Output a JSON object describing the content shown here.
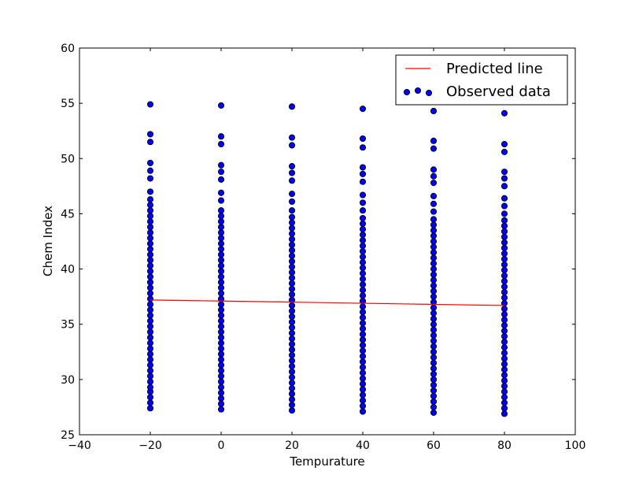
{
  "chart_data": {
    "type": "scatter",
    "title": "",
    "xlabel": "Tempurature",
    "ylabel": "Chem Index",
    "xlim": [
      -40,
      100
    ],
    "ylim": [
      25,
      60
    ],
    "xticks": [
      -40,
      -20,
      0,
      20,
      40,
      60,
      80,
      100
    ],
    "yticks": [
      25,
      30,
      35,
      40,
      45,
      50,
      55,
      60
    ],
    "grid": false,
    "legend_position": "top-right",
    "series": [
      {
        "name": "Predicted line",
        "kind": "line",
        "color": "#ff0000",
        "x": [
          -20,
          0,
          20,
          40,
          60,
          80
        ],
        "y": [
          37.2,
          37.1,
          37.0,
          36.9,
          36.8,
          36.7
        ]
      },
      {
        "name": "Observed data",
        "kind": "scatter",
        "color": "#0000ff",
        "edge_color": "#000000",
        "groups": [
          {
            "x": -20,
            "y": [
              27.4,
              27.9,
              28.4,
              28.9,
              29.3,
              29.8,
              30.3,
              30.8,
              31.3,
              31.8,
              32.3,
              32.8,
              33.3,
              33.8,
              34.3,
              34.8,
              35.3,
              35.8,
              36.3,
              36.8,
              37.3,
              37.8,
              38.3,
              38.8,
              39.3,
              39.8,
              40.3,
              40.8,
              41.3,
              41.8,
              42.3,
              42.8,
              43.3,
              43.8,
              44.3,
              44.8,
              45.3,
              45.8,
              46.3,
              47.0,
              48.2,
              48.9,
              49.6,
              51.5,
              52.2,
              54.9
            ]
          },
          {
            "x": 0,
            "y": [
              27.3,
              27.8,
              28.3,
              28.8,
              29.3,
              29.8,
              30.3,
              30.8,
              31.3,
              31.8,
              32.3,
              32.8,
              33.3,
              33.8,
              34.3,
              34.8,
              35.3,
              35.8,
              36.3,
              36.8,
              37.3,
              37.8,
              38.3,
              38.8,
              39.3,
              39.8,
              40.3,
              40.8,
              41.3,
              41.8,
              42.3,
              42.8,
              43.3,
              43.8,
              44.3,
              44.8,
              45.3,
              46.2,
              46.9,
              48.1,
              48.8,
              49.4,
              51.3,
              52.0,
              54.8
            ]
          },
          {
            "x": 20,
            "y": [
              27.2,
              27.7,
              28.2,
              28.7,
              29.2,
              29.7,
              30.2,
              30.7,
              31.2,
              31.7,
              32.2,
              32.7,
              33.2,
              33.7,
              34.2,
              34.7,
              35.2,
              35.7,
              36.2,
              36.7,
              37.2,
              37.7,
              38.2,
              38.7,
              39.2,
              39.7,
              40.2,
              40.7,
              41.2,
              41.7,
              42.2,
              42.7,
              43.2,
              43.7,
              44.2,
              44.7,
              45.3,
              46.1,
              46.8,
              48.0,
              48.7,
              49.3,
              51.2,
              51.9,
              54.7
            ]
          },
          {
            "x": 40,
            "y": [
              27.1,
              27.6,
              28.1,
              28.6,
              29.1,
              29.6,
              30.1,
              30.6,
              31.1,
              31.6,
              32.1,
              32.6,
              33.1,
              33.6,
              34.1,
              34.6,
              35.1,
              35.6,
              36.1,
              36.6,
              37.1,
              37.6,
              38.1,
              38.6,
              39.1,
              39.6,
              40.1,
              40.6,
              41.1,
              41.6,
              42.1,
              42.6,
              43.1,
              43.6,
              44.1,
              44.6,
              45.3,
              46.0,
              46.7,
              47.9,
              48.6,
              49.2,
              51.0,
              51.8,
              54.5
            ]
          },
          {
            "x": 60,
            "y": [
              27.0,
              27.5,
              28.0,
              28.5,
              29.0,
              29.5,
              30.0,
              30.5,
              31.0,
              31.5,
              32.0,
              32.5,
              33.0,
              33.5,
              34.0,
              34.5,
              35.0,
              35.5,
              36.0,
              36.5,
              37.0,
              37.5,
              38.0,
              38.5,
              39.0,
              39.5,
              40.0,
              40.5,
              41.0,
              41.5,
              42.0,
              42.5,
              43.0,
              43.5,
              44.0,
              44.5,
              45.2,
              45.9,
              46.6,
              47.8,
              48.4,
              49.0,
              50.9,
              51.6,
              54.3
            ]
          },
          {
            "x": 80,
            "y": [
              26.9,
              27.4,
              27.9,
              28.4,
              28.9,
              29.4,
              29.9,
              30.4,
              30.9,
              31.4,
              31.9,
              32.4,
              32.9,
              33.4,
              33.9,
              34.4,
              34.9,
              35.4,
              35.9,
              36.4,
              36.9,
              37.4,
              37.9,
              38.4,
              38.9,
              39.4,
              39.9,
              40.4,
              40.9,
              41.4,
              41.9,
              42.4,
              42.9,
              43.4,
              43.9,
              44.4,
              45.0,
              45.7,
              46.4,
              47.5,
              48.2,
              48.8,
              50.6,
              51.3,
              54.1
            ]
          }
        ]
      }
    ]
  }
}
